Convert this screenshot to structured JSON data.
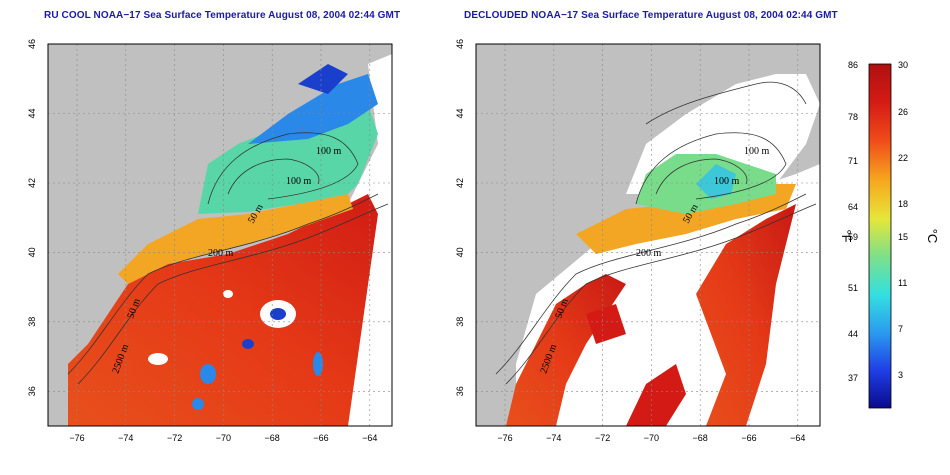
{
  "titles": {
    "left": "RU COOL NOAA−17 Sea Surface Temperature August 08, 2004 02:44 GMT",
    "right": "DECLOUDED NOAA−17 Sea Surface Temperature August 08, 2004 02:44 GMT"
  },
  "axes": {
    "x_ticks": [
      "−76",
      "−74",
      "−72",
      "−70",
      "−68",
      "−66",
      "−64"
    ],
    "y_ticks": [
      "46",
      "44",
      "42",
      "40",
      "38",
      "36"
    ],
    "lon_range": [
      -77.2,
      -63.1
    ],
    "lat_range": [
      35.0,
      46.0
    ]
  },
  "contour_labels": {
    "left": [
      "100 m",
      "100 m",
      "50 m",
      "200 m",
      "50 m",
      "2500 m"
    ],
    "right": [
      "100 m",
      "100 m",
      "50 m",
      "200 m",
      "50 m",
      "2500 m"
    ]
  },
  "colorbar": {
    "f_ticks": [
      "86",
      "78",
      "71",
      "64",
      "59",
      "51",
      "44",
      "37"
    ],
    "c_ticks": [
      "30",
      "26",
      "22",
      "18",
      "15",
      "11",
      "7",
      "3"
    ],
    "f_unit": "°F",
    "c_unit": "°C",
    "range_c": [
      0,
      30
    ],
    "colors": [
      "#0a0a8c",
      "#1f3fe6",
      "#2b9bef",
      "#33e0e0",
      "#7de08a",
      "#e6e63a",
      "#f7a81f",
      "#ef4a1a",
      "#d41a14",
      "#b01010"
    ]
  },
  "colors": {
    "land": "#c0c0c0",
    "no_data": "#ffffff",
    "title": "#1a1aa6"
  }
}
